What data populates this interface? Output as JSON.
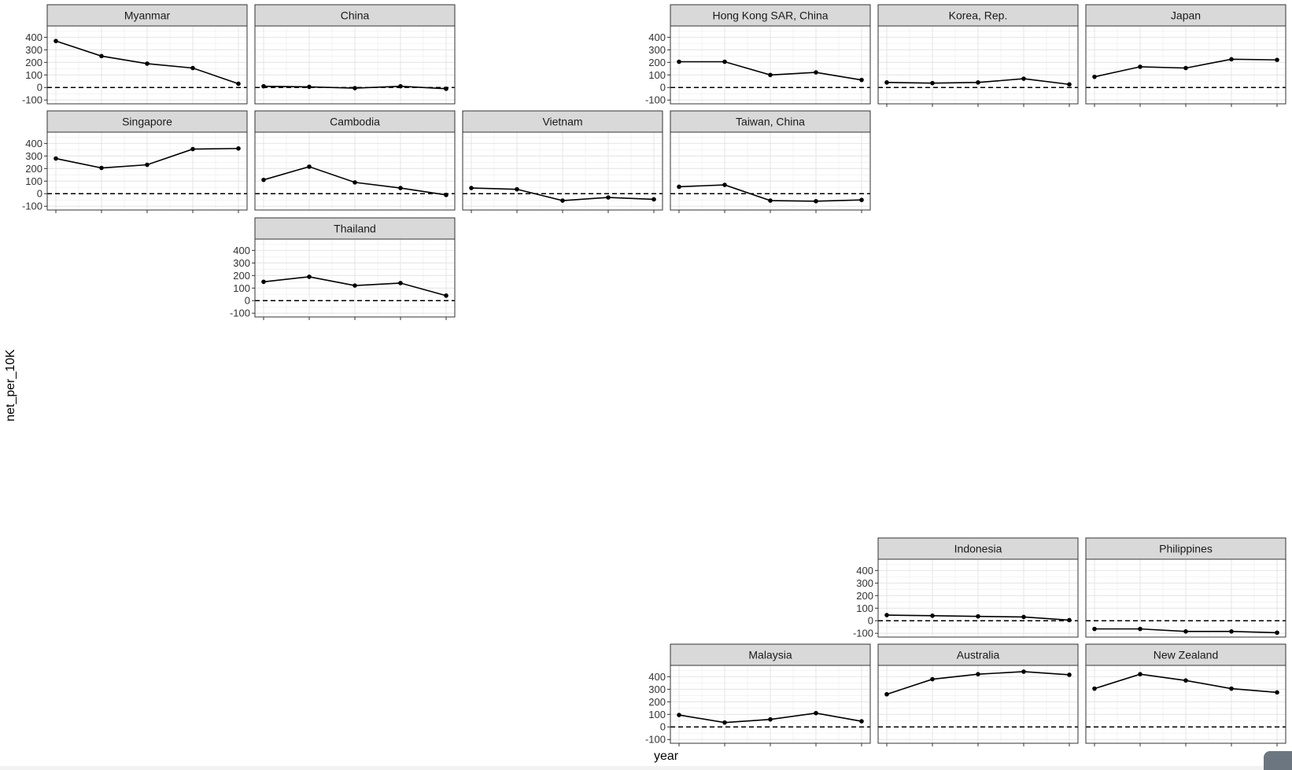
{
  "chart_data": {
    "type": "line",
    "facet_layout": "geographic grid (country panels)",
    "xlabel": "year",
    "ylabel": "net_per_10K",
    "ylim": [
      -130,
      490
    ],
    "yticks": [
      -100,
      0,
      100,
      200,
      300,
      400
    ],
    "reference_line": {
      "y": 0,
      "style": "dashed"
    },
    "grid": true,
    "x_points": 5,
    "panels": [
      {
        "name": "Myanmar",
        "values": [
          370,
          250,
          190,
          155,
          30
        ]
      },
      {
        "name": "China",
        "values": [
          10,
          5,
          -5,
          10,
          -10
        ]
      },
      {
        "name": "Hong Kong SAR, China",
        "values": [
          205,
          205,
          100,
          120,
          60
        ]
      },
      {
        "name": "Korea, Rep.",
        "values": [
          40,
          35,
          40,
          70,
          25
        ]
      },
      {
        "name": "Japan",
        "values": [
          85,
          165,
          155,
          225,
          220
        ]
      },
      {
        "name": "Singapore",
        "values": [
          280,
          205,
          230,
          355,
          360
        ]
      },
      {
        "name": "Cambodia",
        "values": [
          110,
          215,
          90,
          45,
          -10
        ]
      },
      {
        "name": "Vietnam",
        "values": [
          45,
          35,
          -55,
          -30,
          -45
        ]
      },
      {
        "name": "Taiwan, China",
        "values": [
          55,
          70,
          -55,
          -60,
          -50
        ]
      },
      {
        "name": "Thailand",
        "values": [
          150,
          190,
          120,
          140,
          40
        ]
      },
      {
        "name": "Indonesia",
        "values": [
          45,
          40,
          35,
          30,
          5
        ]
      },
      {
        "name": "Philippines",
        "values": [
          -65,
          -65,
          -85,
          -85,
          -95
        ]
      },
      {
        "name": "Malaysia",
        "values": [
          95,
          35,
          60,
          110,
          45
        ]
      },
      {
        "name": "Australia",
        "values": [
          260,
          380,
          420,
          440,
          415
        ]
      },
      {
        "name": "New Zealand",
        "values": [
          305,
          420,
          370,
          305,
          275
        ]
      }
    ]
  }
}
